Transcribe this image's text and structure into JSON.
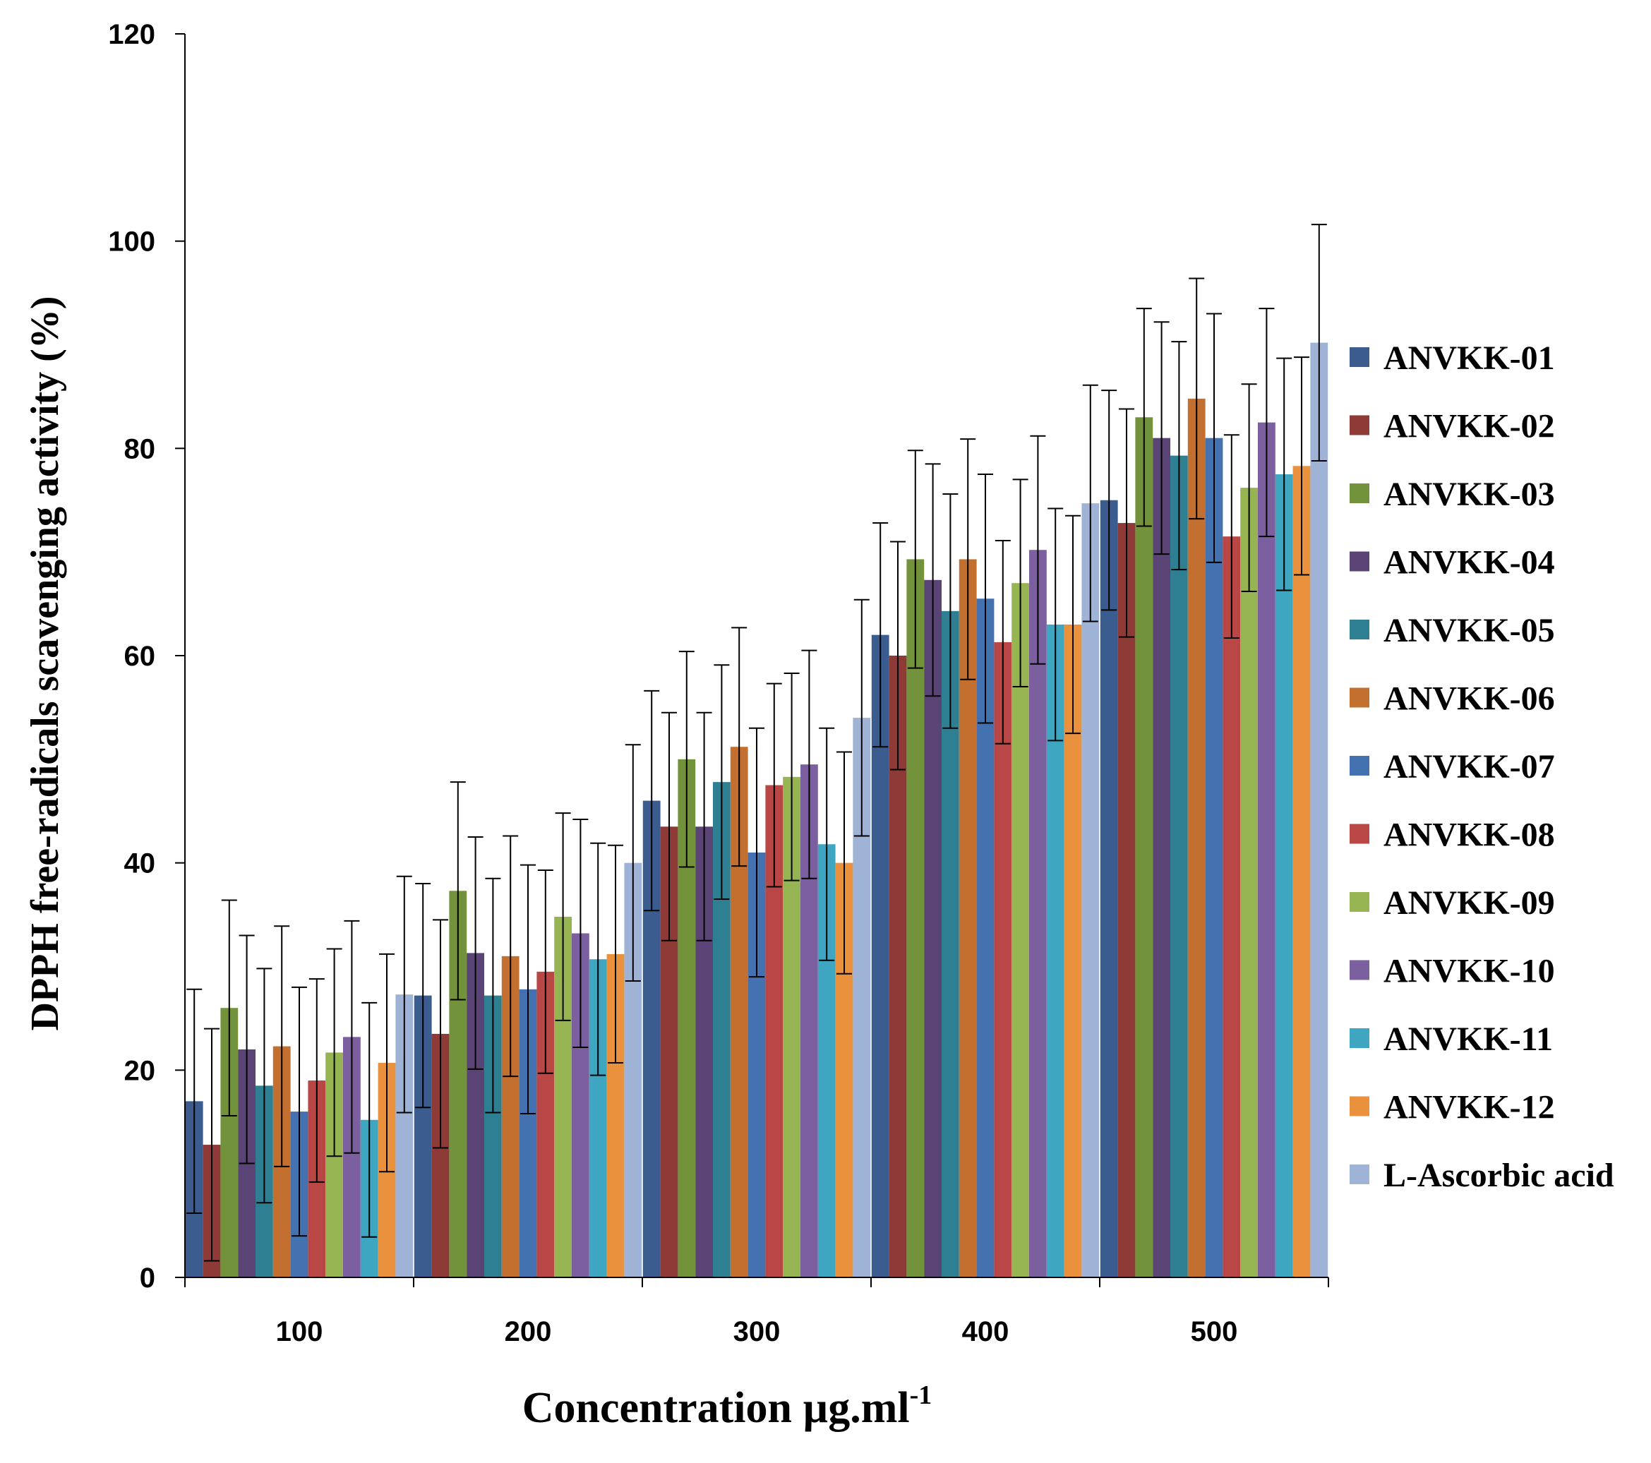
{
  "chart_data": {
    "type": "bar",
    "title": "",
    "xlabel": "Concentration µg.ml",
    "xlabel_superscript": "-1",
    "ylabel": "DPPH free-radicals scavenging activity (%)",
    "ylim": [
      0,
      120
    ],
    "yticks": [
      0,
      20,
      40,
      60,
      80,
      100,
      120
    ],
    "grid": false,
    "legend_position": "right",
    "categories": [
      "100",
      "200",
      "300",
      "400",
      "500"
    ],
    "series": [
      {
        "name": "ANVKK-01",
        "color": "#3a5c8f",
        "values": [
          17.0,
          27.2,
          46.0,
          62.0,
          75.0
        ],
        "errors": [
          10.8,
          10.8,
          10.6,
          10.8,
          10.6
        ]
      },
      {
        "name": "ANVKK-02",
        "color": "#8e3a37",
        "values": [
          12.8,
          23.5,
          43.5,
          60.0,
          72.8
        ],
        "errors": [
          11.2,
          11.0,
          11.0,
          11.0,
          11.0
        ]
      },
      {
        "name": "ANVKK-03",
        "color": "#73923c",
        "values": [
          26.0,
          37.3,
          50.0,
          69.3,
          83.0
        ],
        "errors": [
          10.4,
          10.5,
          10.4,
          10.5,
          10.5
        ]
      },
      {
        "name": "ANVKK-04",
        "color": "#5a4476",
        "values": [
          22.0,
          31.3,
          43.5,
          67.3,
          81.0
        ],
        "errors": [
          11.0,
          11.2,
          11.0,
          11.2,
          11.2
        ]
      },
      {
        "name": "ANVKK-05",
        "color": "#2e7f92",
        "values": [
          18.5,
          27.2,
          47.8,
          64.3,
          79.3
        ],
        "errors": [
          11.3,
          11.3,
          11.3,
          11.3,
          11.0
        ]
      },
      {
        "name": "ANVKK-06",
        "color": "#c26f2f",
        "values": [
          22.3,
          31.0,
          51.2,
          69.3,
          84.8
        ],
        "errors": [
          11.6,
          11.6,
          11.5,
          11.6,
          11.6
        ]
      },
      {
        "name": "ANVKK-07",
        "color": "#4471b0",
        "values": [
          16.0,
          27.8,
          41.0,
          65.5,
          81.0
        ],
        "errors": [
          12.0,
          12.0,
          12.0,
          12.0,
          12.0
        ]
      },
      {
        "name": "ANVKK-08",
        "color": "#b84745",
        "values": [
          19.0,
          29.5,
          47.5,
          61.3,
          71.5
        ],
        "errors": [
          9.8,
          9.8,
          9.8,
          9.8,
          9.8
        ]
      },
      {
        "name": "ANVKK-09",
        "color": "#96b552",
        "values": [
          21.7,
          34.8,
          48.3,
          67.0,
          76.2
        ],
        "errors": [
          10.0,
          10.0,
          10.0,
          10.0,
          10.0
        ]
      },
      {
        "name": "ANVKK-10",
        "color": "#7b5f9e",
        "values": [
          23.2,
          33.2,
          49.5,
          70.2,
          82.5
        ],
        "errors": [
          11.2,
          11.0,
          11.0,
          11.0,
          11.0
        ]
      },
      {
        "name": "ANVKK-11",
        "color": "#3ea6c0",
        "values": [
          15.2,
          30.7,
          41.8,
          63.0,
          77.5
        ],
        "errors": [
          11.3,
          11.2,
          11.2,
          11.2,
          11.2
        ]
      },
      {
        "name": "ANVKK-12",
        "color": "#ea913e",
        "values": [
          20.7,
          31.2,
          40.0,
          63.0,
          78.3
        ],
        "errors": [
          10.5,
          10.5,
          10.7,
          10.5,
          10.5
        ]
      },
      {
        "name": "L-Ascorbic acid",
        "color": "#9eb3d6",
        "values": [
          27.3,
          40.0,
          54.0,
          74.7,
          90.2
        ],
        "errors": [
          11.4,
          11.4,
          11.4,
          11.4,
          11.4
        ]
      }
    ]
  }
}
